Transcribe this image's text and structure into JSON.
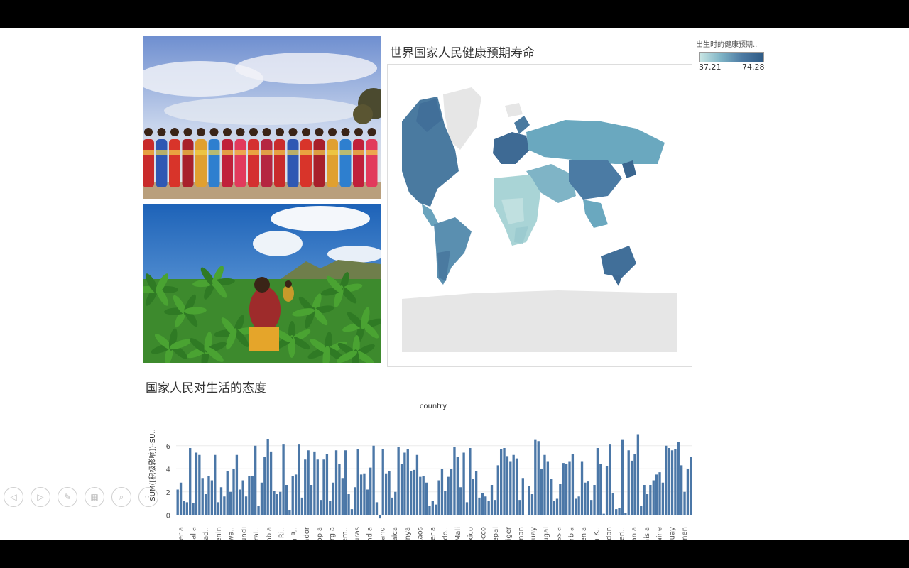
{
  "map": {
    "title": "世界国家人民健康预期寿命",
    "legend_title": "出生时的健康预期..",
    "legend_min": "37.21",
    "legend_max": "74.28"
  },
  "attitude_title": "国家人民对生活的态度",
  "chart_data": {
    "type": "bar",
    "title": "",
    "xlabel": "country",
    "ylabel": "SUM([积极影响])-SU..",
    "ylim": [
      -0.6,
      7.4
    ],
    "yticks": [
      0,
      2,
      4,
      6
    ],
    "color": "#4b77a7",
    "tick_labels": [
      "Algeria",
      "Australia",
      "Banglad..",
      "Benin",
      "Botswa..",
      "Burundi",
      "Central..",
      "Colombia",
      "Costa Ri..",
      "Czech R..",
      "Ecuador",
      "Ethiopia",
      "Georgia",
      "Guatem..",
      "Honduras",
      "India",
      "Ireland",
      "Jamaica",
      "Kenya",
      "Laos",
      "Liberia",
      "Macedo..",
      "Mali",
      "Mexico",
      "Morocco",
      "Nepal",
      "Niger",
      "Oman",
      "Paraguay",
      "Portugal",
      "Russia",
      "Serbia",
      "Slovenia",
      "South K..",
      "Sudan",
      "Switzerl..",
      "Tanzania",
      "Tunisia",
      "Ukraine",
      "Uruguay",
      "Yemen"
    ],
    "values": [
      2.2,
      2.8,
      1.2,
      1.1,
      5.8,
      1.0,
      5.4,
      5.2,
      3.2,
      1.8,
      3.4,
      3.0,
      5.2,
      1.1,
      2.4,
      1.6,
      3.8,
      2.0,
      4.0,
      5.2,
      2.2,
      3.0,
      1.6,
      3.4,
      3.4,
      6.0,
      0.8,
      2.8,
      5.0,
      6.6,
      5.5,
      2.1,
      1.8,
      2.0,
      6.1,
      2.6,
      0.4,
      3.4,
      3.5,
      6.1,
      1.5,
      4.8,
      5.6,
      2.6,
      5.5,
      4.8,
      1.3,
      4.8,
      5.3,
      1.2,
      2.8,
      5.6,
      4.4,
      3.2,
      5.6,
      1.8,
      0.5,
      2.4,
      5.7,
      3.5,
      3.6,
      2.2,
      4.1,
      6.0,
      1.1,
      -0.3,
      5.7,
      3.6,
      3.8,
      1.5,
      2.0,
      5.9,
      4.4,
      5.4,
      5.7,
      3.8,
      3.9,
      5.2,
      3.3,
      3.4,
      2.8,
      0.8,
      1.2,
      0.9,
      3.0,
      4.0,
      2.1,
      3.3,
      4.0,
      5.9,
      5.0,
      2.4,
      5.4,
      1.1,
      5.8,
      3.1,
      3.8,
      1.5,
      1.9,
      1.6,
      1.2,
      2.6,
      1.3,
      4.3,
      5.7,
      5.8,
      5.1,
      4.6,
      5.2,
      4.9,
      1.3,
      3.2,
      0.0,
      2.5,
      1.8,
      6.5,
      6.4,
      4.0,
      5.2,
      4.6,
      3.1,
      1.2,
      1.4,
      2.7,
      4.5,
      4.4,
      4.6,
      5.3,
      1.4,
      1.6,
      4.6,
      2.8,
      2.9,
      1.3,
      2.6,
      5.8,
      4.4,
      0.1,
      4.2,
      6.1,
      1.9,
      0.5,
      0.6,
      6.5,
      0.2,
      5.6,
      4.7,
      5.3,
      7.0,
      0.8,
      2.6,
      1.8,
      2.6,
      3.0,
      3.5,
      3.7,
      2.8,
      6.0,
      5.8,
      5.6,
      5.7,
      6.3,
      4.3,
      2.0,
      4.0,
      5.0
    ]
  },
  "nav_buttons": [
    {
      "name": "prev-slide",
      "icon": "◁"
    },
    {
      "name": "next-slide",
      "icon": "▷"
    },
    {
      "name": "pen-tool",
      "icon": "✎"
    },
    {
      "name": "slide-overview",
      "icon": "▦"
    },
    {
      "name": "zoom",
      "icon": "⌕"
    },
    {
      "name": "more-options",
      "icon": "···"
    }
  ]
}
